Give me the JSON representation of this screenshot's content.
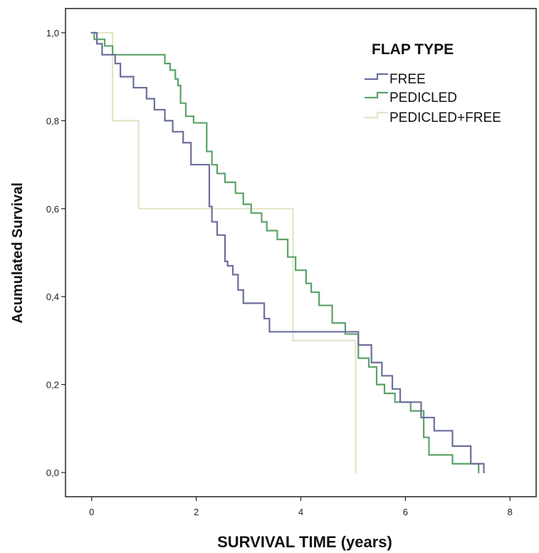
{
  "chart_data": {
    "type": "line",
    "step": true,
    "xlabel": "SURVIVAL TIME (years)",
    "ylabel": "Acumulated Survival",
    "xlim": [
      -0.5,
      8.5
    ],
    "ylim": [
      -0.055,
      1.055
    ],
    "x_ticks": [
      0,
      2,
      4,
      6,
      8
    ],
    "x_tick_labels": [
      "0",
      "2",
      "4",
      "6",
      "8"
    ],
    "y_ticks": [
      0.0,
      0.2,
      0.4,
      0.6,
      0.8,
      1.0
    ],
    "y_tick_labels": [
      "0,0",
      "0,2",
      "0,4",
      "0,6",
      "0,8",
      "1,0"
    ],
    "grid": false,
    "legend": {
      "title": "FLAP TYPE",
      "placement": "top-right"
    },
    "series": [
      {
        "name": "FREE",
        "color": "#6b6f9c",
        "points": [
          [
            0.0,
            1.0
          ],
          [
            0.1,
            0.975
          ],
          [
            0.2,
            0.95
          ],
          [
            0.45,
            0.93
          ],
          [
            0.55,
            0.9
          ],
          [
            0.8,
            0.875
          ],
          [
            1.05,
            0.85
          ],
          [
            1.2,
            0.825
          ],
          [
            1.4,
            0.8
          ],
          [
            1.55,
            0.775
          ],
          [
            1.75,
            0.75
          ],
          [
            1.9,
            0.7
          ],
          [
            2.25,
            0.605
          ],
          [
            2.3,
            0.57
          ],
          [
            2.4,
            0.54
          ],
          [
            2.55,
            0.48
          ],
          [
            2.6,
            0.47
          ],
          [
            2.7,
            0.45
          ],
          [
            2.8,
            0.415
          ],
          [
            2.9,
            0.385
          ],
          [
            3.3,
            0.35
          ],
          [
            3.4,
            0.32
          ],
          [
            4.25,
            0.32
          ],
          [
            5.1,
            0.29
          ],
          [
            5.35,
            0.25
          ],
          [
            5.55,
            0.22
          ],
          [
            5.75,
            0.19
          ],
          [
            5.9,
            0.16
          ],
          [
            6.3,
            0.125
          ],
          [
            6.55,
            0.095
          ],
          [
            6.9,
            0.06
          ],
          [
            7.25,
            0.02
          ],
          [
            7.5,
            0.0
          ]
        ]
      },
      {
        "name": "PEDICLED",
        "color": "#5aa36a",
        "points": [
          [
            0.0,
            1.0
          ],
          [
            0.05,
            0.985
          ],
          [
            0.25,
            0.97
          ],
          [
            0.4,
            0.95
          ],
          [
            1.4,
            0.93
          ],
          [
            1.5,
            0.915
          ],
          [
            1.6,
            0.895
          ],
          [
            1.65,
            0.88
          ],
          [
            1.7,
            0.84
          ],
          [
            1.8,
            0.81
          ],
          [
            1.95,
            0.795
          ],
          [
            2.2,
            0.73
          ],
          [
            2.3,
            0.7
          ],
          [
            2.4,
            0.68
          ],
          [
            2.55,
            0.66
          ],
          [
            2.75,
            0.635
          ],
          [
            2.9,
            0.61
          ],
          [
            3.05,
            0.59
          ],
          [
            3.25,
            0.57
          ],
          [
            3.35,
            0.55
          ],
          [
            3.55,
            0.53
          ],
          [
            3.75,
            0.49
          ],
          [
            3.9,
            0.46
          ],
          [
            4.1,
            0.43
          ],
          [
            4.2,
            0.41
          ],
          [
            4.35,
            0.38
          ],
          [
            4.6,
            0.34
          ],
          [
            4.85,
            0.315
          ],
          [
            5.1,
            0.26
          ],
          [
            5.3,
            0.24
          ],
          [
            5.45,
            0.2
          ],
          [
            5.6,
            0.18
          ],
          [
            5.8,
            0.16
          ],
          [
            6.1,
            0.14
          ],
          [
            6.35,
            0.08
          ],
          [
            6.45,
            0.04
          ],
          [
            6.9,
            0.02
          ],
          [
            7.05,
            0.02
          ],
          [
            7.4,
            0.0
          ]
        ]
      },
      {
        "name": "PEDICLED+FREE",
        "color": "#e2e6c6",
        "points": [
          [
            0.0,
            1.0
          ],
          [
            0.4,
            0.8
          ],
          [
            0.9,
            0.6
          ],
          [
            3.85,
            0.3
          ],
          [
            5.05,
            0.0
          ]
        ]
      }
    ]
  }
}
